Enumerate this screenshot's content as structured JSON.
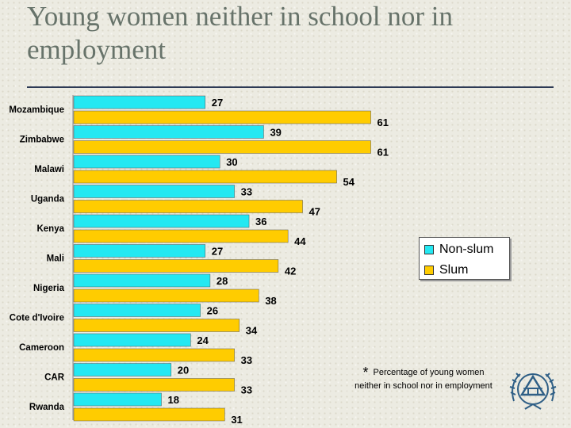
{
  "title": "Young women neither in school nor in employment",
  "footnote": {
    "marker": "*",
    "text": "Percentage of young women neither in school nor in employment"
  },
  "colors": {
    "non_slum": "#24e8f2",
    "slum": "#ffcc00",
    "title": "#67736a",
    "rule": "#2d3a55"
  },
  "emblem_icon": "un-habitat-emblem-icon",
  "chart_data": {
    "type": "bar",
    "orientation": "horizontal",
    "title": "",
    "xlabel": "",
    "ylabel": "",
    "categories": [
      "Mozambique",
      "Zimbabwe",
      "Malawi",
      "Uganda",
      "Kenya",
      "Mali",
      "Nigeria",
      "Cote d'Ivoire",
      "Cameroon",
      "CAR",
      "Rwanda"
    ],
    "series": [
      {
        "name": "Non-slum",
        "color": "#24e8f2",
        "values": [
          27,
          39,
          30,
          33,
          36,
          27,
          28,
          26,
          24,
          20,
          18
        ]
      },
      {
        "name": "Slum",
        "color": "#ffcc00",
        "values": [
          61,
          61,
          54,
          47,
          44,
          42,
          38,
          34,
          33,
          33,
          31
        ]
      }
    ],
    "xlim": [
      0,
      70
    ],
    "data_labels": true,
    "grid": false,
    "legend": "right"
  }
}
